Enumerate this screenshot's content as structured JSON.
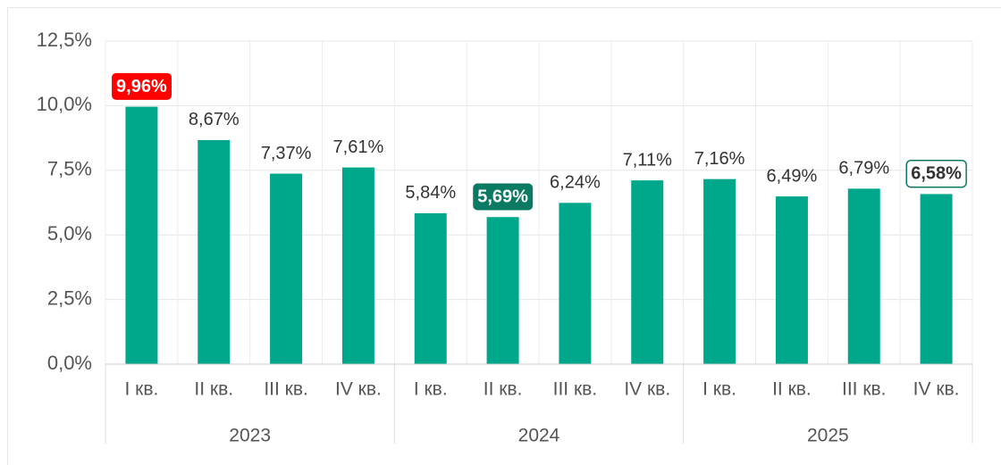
{
  "chart_data": {
    "type": "bar",
    "color": "#00a88b",
    "max_label_color": "#ff0000",
    "min_label_color": "#0b7a62",
    "last_label_outline": "#0b7a62",
    "ylim": [
      0,
      12.5
    ],
    "yticks": [
      {
        "value": 0,
        "label": "0,0%"
      },
      {
        "value": 2.5,
        "label": "2,5%"
      },
      {
        "value": 5,
        "label": "5,0%"
      },
      {
        "value": 7.5,
        "label": "7,5%"
      },
      {
        "value": 10,
        "label": "10,0%"
      },
      {
        "value": 12.5,
        "label": "12,5%"
      }
    ],
    "grid": true,
    "groups": [
      {
        "label": "2023",
        "categories": [
          "I кв.",
          "II кв.",
          "III кв.",
          "IV кв."
        ],
        "values": [
          9.96,
          8.67,
          7.37,
          7.61
        ],
        "value_labels": [
          "9,96%",
          "8,67%",
          "7,37%",
          "7,61%"
        ]
      },
      {
        "label": "2024",
        "categories": [
          "I кв.",
          "II кв.",
          "III кв.",
          "IV кв."
        ],
        "values": [
          5.84,
          5.69,
          6.24,
          7.11
        ],
        "value_labels": [
          "5,84%",
          "5,69%",
          "6,24%",
          "7,11%"
        ]
      },
      {
        "label": "2025",
        "categories": [
          "I кв.",
          "II кв.",
          "III кв.",
          "IV кв."
        ],
        "values": [
          7.16,
          6.49,
          6.79,
          6.58
        ],
        "value_labels": [
          "7,16%",
          "6,49%",
          "6,79%",
          "6,58%"
        ]
      }
    ]
  }
}
